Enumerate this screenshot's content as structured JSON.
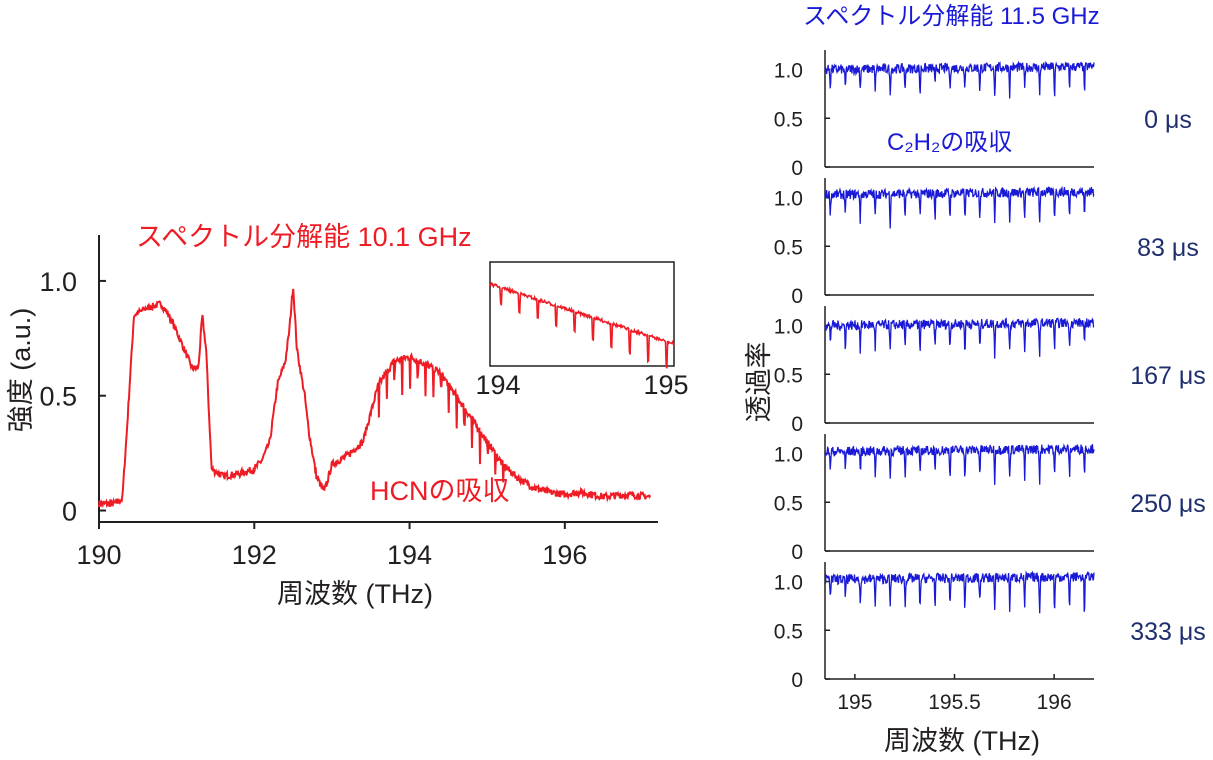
{
  "chart_data": [
    {
      "type": "line",
      "title": "スペクトル分解能 10.1 GHz",
      "annotation": "HCNの吸収",
      "xlabel": "周波数 (THz)",
      "ylabel": "強度 (a.u.)",
      "xlim": [
        190,
        197.2
      ],
      "ylim": [
        -0.05,
        1.2
      ],
      "xticks": [
        "190",
        "192",
        "194",
        "196"
      ],
      "yticks": [
        "0",
        "0.5",
        "1.0"
      ],
      "line_color": "#ee1c25",
      "series": [
        {
          "x": [
            190.0,
            190.2,
            190.3,
            190.35,
            190.45,
            190.6,
            190.8,
            190.9,
            191.0,
            191.2,
            191.28,
            191.33,
            191.38,
            191.45,
            191.6,
            191.8,
            192.0,
            192.1,
            192.2,
            192.3,
            192.4,
            192.45,
            192.5,
            192.55,
            192.6,
            192.65,
            192.7,
            192.8,
            192.9,
            193.0,
            193.2,
            193.4,
            193.6,
            193.8,
            194.0,
            194.2,
            194.4,
            194.6,
            194.8,
            195.0,
            195.2,
            195.4,
            195.6,
            195.8,
            196.0,
            196.2,
            196.5,
            196.8,
            197.1
          ],
          "y": [
            0.03,
            0.03,
            0.05,
            0.3,
            0.85,
            0.88,
            0.9,
            0.85,
            0.78,
            0.62,
            0.62,
            0.85,
            0.7,
            0.18,
            0.15,
            0.16,
            0.18,
            0.22,
            0.3,
            0.55,
            0.65,
            0.78,
            0.98,
            0.7,
            0.6,
            0.5,
            0.35,
            0.15,
            0.08,
            0.2,
            0.24,
            0.3,
            0.55,
            0.65,
            0.67,
            0.64,
            0.6,
            0.5,
            0.4,
            0.3,
            0.2,
            0.14,
            0.1,
            0.08,
            0.07,
            0.08,
            0.06,
            0.07,
            0.06
          ]
        }
      ],
      "inset": {
        "xlim": [
          194,
          195
        ],
        "xticks": [
          "194",
          "195"
        ]
      }
    },
    {
      "type": "line",
      "title": "スペクトル分解能 11.5 GHz",
      "annotation": "C₂H₂の吸収",
      "xlabel": "周波数 (THz)",
      "ylabel": "透過率",
      "xlim": [
        194.85,
        196.2
      ],
      "ylim": [
        0,
        1.2
      ],
      "xticks": [
        "195",
        "195.5",
        "196"
      ],
      "yticks": [
        "0",
        "0.5",
        "1.0"
      ],
      "line_color": "#1a1ad6",
      "label_color": "#1f2f6e",
      "panels": [
        {
          "label": "0 μs",
          "baseline": 1.0,
          "dip_depths": [
            0.2,
            0.25,
            0.22,
            0.25,
            0.28,
            0.25,
            0.3,
            0.22,
            0.25,
            0.2,
            0.25,
            0.3,
            0.28,
            0.25,
            0.3,
            0.35,
            0.22,
            0.3
          ]
        },
        {
          "label": "83 μs",
          "baseline": 1.03,
          "dip_depths": [
            0.22,
            0.25,
            0.3,
            0.25,
            0.33,
            0.28,
            0.3,
            0.3,
            0.28,
            0.32,
            0.25,
            0.3,
            0.28,
            0.3,
            0.35,
            0.3,
            0.32,
            0.3
          ]
        },
        {
          "label": "167 μs",
          "baseline": 1.0,
          "dip_depths": [
            0.18,
            0.25,
            0.28,
            0.25,
            0.3,
            0.28,
            0.35,
            0.3,
            0.28,
            0.32,
            0.3,
            0.35,
            0.3,
            0.32,
            0.38,
            0.3,
            0.32,
            0.3
          ]
        },
        {
          "label": "250 μs",
          "baseline": 1.02,
          "dip_depths": [
            0.22,
            0.22,
            0.25,
            0.28,
            0.3,
            0.25,
            0.3,
            0.28,
            0.32,
            0.3,
            0.28,
            0.35,
            0.3,
            0.32,
            0.35,
            0.3,
            0.33,
            0.3
          ]
        },
        {
          "label": "333 μs",
          "baseline": 1.02,
          "dip_depths": [
            0.15,
            0.2,
            0.25,
            0.25,
            0.3,
            0.3,
            0.35,
            0.3,
            0.32,
            0.35,
            0.3,
            0.38,
            0.32,
            0.35,
            0.38,
            0.4,
            0.35,
            0.45
          ]
        }
      ]
    }
  ]
}
